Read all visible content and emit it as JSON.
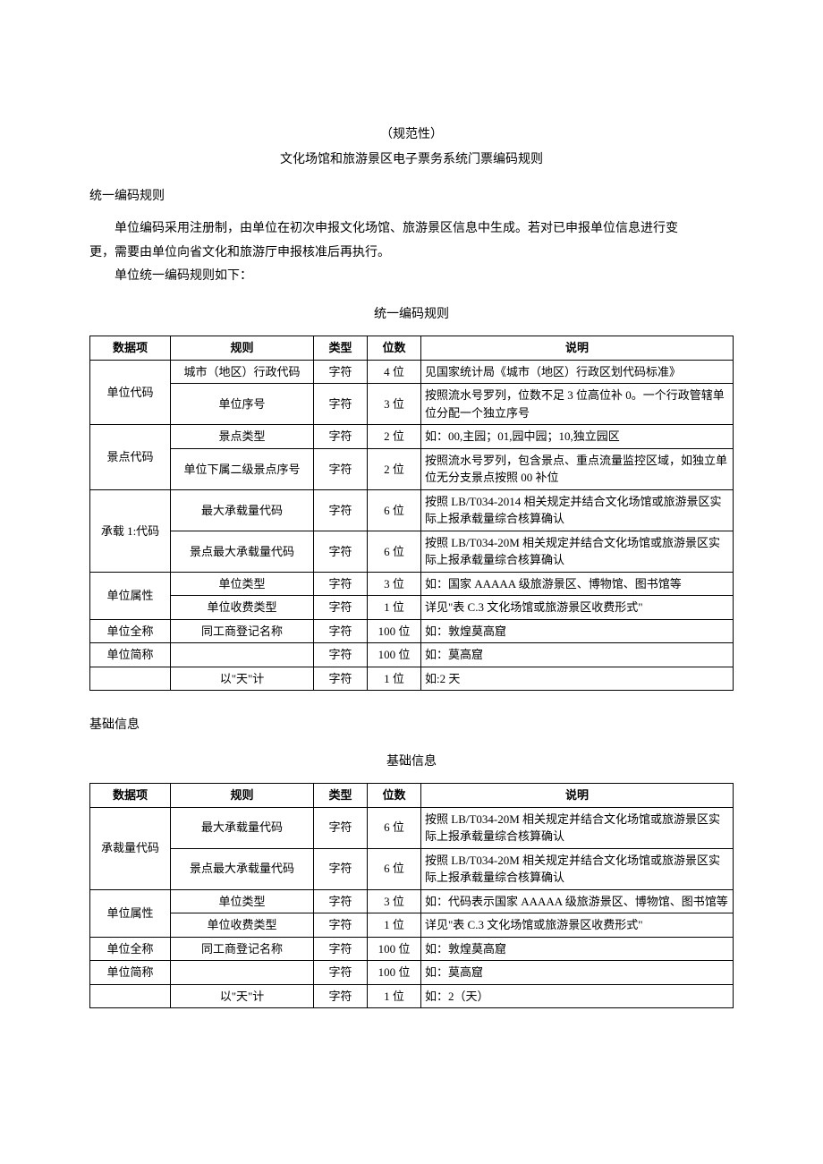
{
  "header": {
    "title_sub": "（规范性）",
    "title_main": "文化场馆和旅游景区电子票务系统门票编码规则"
  },
  "section1": {
    "heading": "统一编码规则",
    "p1": "单位编码采用注册制，由单位在初次申报文化场馆、旅游景区信息中生成。若对已申报单位信息进行变",
    "p2": "更，需要由单位向省文化和旅游厅申报核准后再执行。",
    "p3": "单位统一编码规则如下：",
    "table_caption": "统一编码规则",
    "columns": [
      "数据项",
      "规则",
      "类型",
      "位数",
      "说明"
    ],
    "groups": [
      {
        "item": "单位代码",
        "rows": [
          {
            "rule": "城市（地区）行政代码",
            "type": "字符",
            "digits": "4 位",
            "desc": "见国家统计局《城市（地区）行政区划代码标准》"
          },
          {
            "rule": "单位序号",
            "type": "字符",
            "digits": "3 位",
            "desc": "按照流水号罗列，位数不足 3 位高位补 0。一个行政管辖单位分配一个独立序号"
          }
        ]
      },
      {
        "item": "景点代码",
        "rows": [
          {
            "rule": "景点类型",
            "type": "字符",
            "digits": "2 位",
            "desc": "如：00,主园；01,园中园；10,独立园区"
          },
          {
            "rule": "单位下属二级景点序号",
            "type": "字符",
            "digits": "2 位",
            "desc": "按照流水号罗列，包含景点、重点流量监控区域，如独立单位无分支景点按照 00 补位"
          }
        ]
      },
      {
        "item": "承载 1:代码",
        "rows": [
          {
            "rule": "最大承载量代码",
            "type": "字符",
            "digits": "6 位",
            "desc": "按照 LB/T034-2014 相关规定并结合文化场馆或旅游景区实际上报承载量综合核算确认"
          },
          {
            "rule": "景点最大承载量代码",
            "type": "字符",
            "digits": "6 位",
            "desc": "按照 LB/T034-20M 相关规定并结合文化场馆或旅游景区实际上报承载量综合核算确认"
          }
        ]
      },
      {
        "item": "单位属性",
        "rows": [
          {
            "rule": "单位类型",
            "type": "字符",
            "digits": "3 位",
            "desc": "如：国家 AAAAA 级旅游景区、博物馆、图书馆等"
          },
          {
            "rule": "单位收费类型",
            "type": "字符",
            "digits": "1 位",
            "desc": "详见\"表 C.3 文化场馆或旅游景区收费形式\""
          }
        ]
      },
      {
        "item": "单位全称",
        "rows": [
          {
            "rule": "同工商登记名称",
            "type": "字符",
            "digits": "100 位",
            "desc": "如：敦煌莫高窟"
          }
        ]
      },
      {
        "item": "单位简称",
        "rows": [
          {
            "rule": "",
            "type": "字符",
            "digits": "100 位",
            "desc": "如：莫高窟"
          }
        ]
      },
      {
        "item": "",
        "rows": [
          {
            "rule": "以\"天\"计",
            "type": "字符",
            "digits": "1 位",
            "desc": "如:2 天"
          }
        ]
      }
    ]
  },
  "section2": {
    "heading": "基础信息",
    "table_caption": "基础信息",
    "columns": [
      "数据项",
      "规则",
      "类型",
      "位数",
      "说明"
    ],
    "groups": [
      {
        "item": "承裁量代码",
        "rows": [
          {
            "rule": "最大承载量代码",
            "type": "字符",
            "digits": "6 位",
            "desc": "按照 LB/T034-20M 相关规定并结合文化场馆或旅游景区实际上报承载量综合核算确认"
          },
          {
            "rule": "景点最大承载量代码",
            "type": "字符",
            "digits": "6 位",
            "desc": "按照 LB/T034-20M 相关规定并结合文化场馆或旅游景区实际上报承载量综合核算确认"
          }
        ]
      },
      {
        "item": "单位属性",
        "rows": [
          {
            "rule": "单位类型",
            "type": "字符",
            "digits": "3 位",
            "desc": "如：代码表示国家 AAAAA 级旅游景区、博物馆、图书馆等"
          },
          {
            "rule": "单位收费类型",
            "type": "字符",
            "digits": "1 位",
            "desc": "详见\"表 C.3 文化场馆或旅游景区收费形式\""
          }
        ]
      },
      {
        "item": "单位全称",
        "rows": [
          {
            "rule": "同工商登记名称",
            "type": "字符",
            "digits": "100 位",
            "desc": "如：敦煌莫高窟"
          }
        ]
      },
      {
        "item": "单位简称",
        "rows": [
          {
            "rule": "",
            "type": "字符",
            "digits": "100 位",
            "desc": "如：莫高窟"
          }
        ]
      },
      {
        "item": "",
        "rows": [
          {
            "rule": "以\"天\"计",
            "type": "字符",
            "digits": "1 位",
            "desc": "如：2（天）"
          }
        ]
      }
    ]
  }
}
